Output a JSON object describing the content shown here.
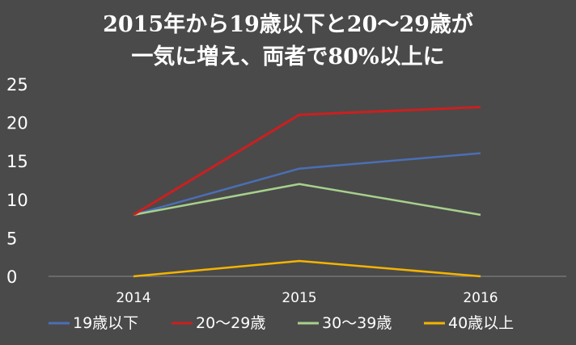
{
  "chart_data": {
    "type": "line",
    "title_lines": [
      "2015年から19歳以下と20～29歳が",
      "一気に増え、両者で80%以上に"
    ],
    "x": [
      "2014",
      "2015",
      "2016"
    ],
    "ylim": [
      0,
      25
    ],
    "yticks": [
      "0",
      "5",
      "10",
      "15",
      "20",
      "25"
    ],
    "grid": false,
    "legend_position": "bottom",
    "series": [
      {
        "name": "19歳以下",
        "color": "#4a6fb5",
        "values": [
          8,
          14,
          16
        ]
      },
      {
        "name": "20～29歳",
        "color": "#cc1f1f",
        "values": [
          8,
          21,
          22
        ]
      },
      {
        "name": "30～39歳",
        "color": "#a8d08d",
        "values": [
          8,
          12,
          8
        ]
      },
      {
        "name": "40歳以上",
        "color": "#f5b400",
        "values": [
          0,
          2,
          0
        ]
      }
    ]
  }
}
